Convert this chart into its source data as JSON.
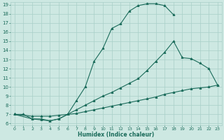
{
  "xlabel": "Humidex (Indice chaleur)",
  "xlim": [
    0,
    23
  ],
  "ylim": [
    6,
    19
  ],
  "xticks": [
    0,
    1,
    2,
    3,
    4,
    5,
    6,
    7,
    8,
    9,
    10,
    11,
    12,
    13,
    14,
    15,
    16,
    17,
    18,
    19,
    20,
    21,
    22,
    23
  ],
  "yticks": [
    6,
    7,
    8,
    9,
    10,
    11,
    12,
    13,
    14,
    15,
    16,
    17,
    18,
    19
  ],
  "bg_color": "#cde8e2",
  "grid_color": "#a8cfc8",
  "line_color": "#1a6b5a",
  "line1_x": [
    0,
    1,
    2,
    3,
    4,
    5,
    6,
    7,
    8,
    9,
    10,
    11,
    12,
    13,
    14,
    15,
    16,
    17,
    18
  ],
  "line1_y": [
    7.0,
    7.0,
    6.5,
    6.5,
    6.3,
    6.5,
    7.0,
    8.5,
    10.0,
    12.8,
    14.2,
    16.4,
    16.9,
    18.3,
    18.9,
    19.1,
    19.1,
    18.9,
    17.9
  ],
  "line2_x": [
    0,
    2,
    3,
    4,
    5,
    6,
    7,
    8,
    9,
    10,
    11,
    12,
    13,
    14,
    15,
    16,
    17,
    18,
    19,
    20,
    21,
    22,
    23
  ],
  "line2_y": [
    7.0,
    6.5,
    6.4,
    6.3,
    6.5,
    7.0,
    7.5,
    8.0,
    8.5,
    9.0,
    9.4,
    9.9,
    10.4,
    10.9,
    11.8,
    12.8,
    13.8,
    15.0,
    13.2,
    13.1,
    12.6,
    12.0,
    10.2
  ],
  "line3_x": [
    0,
    2,
    3,
    4,
    5,
    6,
    7,
    8,
    9,
    10,
    11,
    12,
    13,
    14,
    15,
    16,
    17,
    18,
    19,
    20,
    21,
    22,
    23
  ],
  "line3_y": [
    7.0,
    6.8,
    6.8,
    6.8,
    6.9,
    7.0,
    7.1,
    7.3,
    7.5,
    7.7,
    7.9,
    8.1,
    8.3,
    8.5,
    8.7,
    8.9,
    9.2,
    9.4,
    9.6,
    9.8,
    9.9,
    10.0,
    10.2
  ]
}
